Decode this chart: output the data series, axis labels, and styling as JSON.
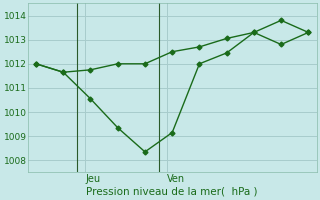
{
  "line1_x": [
    0,
    1,
    2,
    3,
    4,
    5,
    6,
    7,
    8,
    9,
    10
  ],
  "line1_y": [
    1012.0,
    1011.65,
    1010.55,
    1009.35,
    1008.35,
    1009.15,
    1012.0,
    1012.45,
    1013.3,
    1013.8,
    1013.3
  ],
  "line2_x": [
    0,
    1,
    2,
    3,
    4,
    5,
    6,
    7,
    8,
    9,
    10
  ],
  "line2_y": [
    1012.0,
    1011.65,
    1011.75,
    1012.0,
    1012.0,
    1012.5,
    1012.7,
    1013.05,
    1013.3,
    1012.8,
    1013.3
  ],
  "line_color": "#1a6b1a",
  "bg_color": "#c8e8e8",
  "grid_color": "#a8cccc",
  "xlabel": "Pression niveau de la mer(  hPa )",
  "ylim": [
    1007.5,
    1014.5
  ],
  "yticks": [
    1008,
    1009,
    1010,
    1011,
    1012,
    1013,
    1014
  ],
  "xlim": [
    -0.3,
    10.3
  ],
  "jeu_x": 1.5,
  "ven_x": 4.5,
  "fig_bg": "#c8e8e8"
}
